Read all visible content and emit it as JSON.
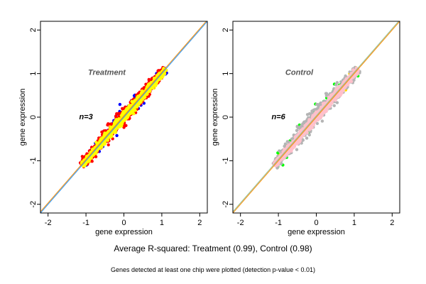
{
  "colors": {
    "treatment_points": [
      "#ffd700",
      "#0000ff",
      "#ff0000",
      "#ffff00"
    ],
    "control_points": [
      "#ffd700",
      "#00ff00",
      "#b4b4b4",
      "#ffc0cb"
    ],
    "treatment_lines": [
      "#1e90ff",
      "#ff8c00"
    ],
    "control_lines": [
      "#ff8c00",
      "#8fbc8f"
    ]
  },
  "chart_data": [
    {
      "type": "scatter",
      "title": "Treatment",
      "annotation": "n=3",
      "xlabel": "gene expression",
      "ylabel": "gene expression",
      "xlim": [
        -2.2,
        2.2
      ],
      "ylim": [
        -2.2,
        2.2
      ],
      "xticks": [
        "-2",
        "-1",
        "0",
        "1",
        "2"
      ],
      "yticks": [
        "-2",
        "-1",
        "0",
        "1",
        "2"
      ],
      "cloud": {
        "x_range": [
          -1.1,
          1.1
        ],
        "y_range": [
          -1.15,
          1.15
        ]
      },
      "reference_line": {
        "slope": 1,
        "intercept": 0
      }
    },
    {
      "type": "scatter",
      "title": "Control",
      "annotation": "n=6",
      "xlabel": "gene expression",
      "ylabel": "gene expression",
      "xlim": [
        -2.2,
        2.2
      ],
      "ylim": [
        -2.2,
        2.2
      ],
      "xticks": [
        "-2",
        "-1",
        "0",
        "1",
        "2"
      ],
      "yticks": [
        "-2",
        "-1",
        "0",
        "1",
        "2"
      ],
      "cloud": {
        "x_range": [
          -1.1,
          1.1
        ],
        "y_range": [
          -1.15,
          1.15
        ]
      },
      "reference_line": {
        "slope": 1,
        "intercept": 0
      }
    }
  ],
  "caption_main": "Average R-squared: Treatment (0.99), Control (0.98)",
  "caption_sub": "Genes detected at least one chip were plotted (detection p-value < 0.01)"
}
